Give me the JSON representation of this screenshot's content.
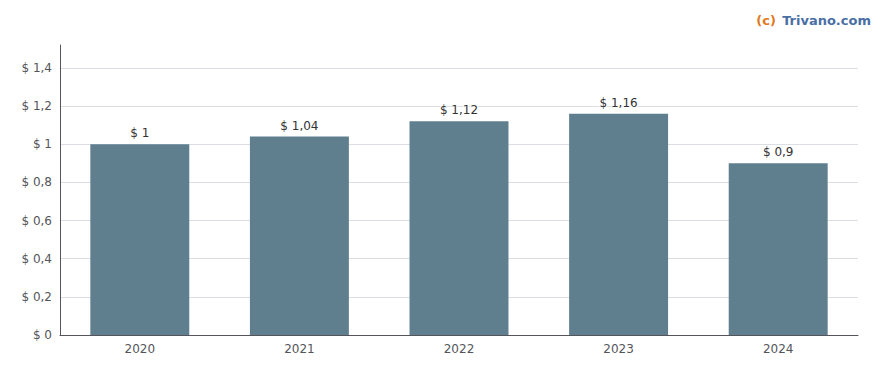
{
  "chart_data": {
    "type": "bar",
    "categories": [
      "2020",
      "2021",
      "2022",
      "2023",
      "2024"
    ],
    "values": [
      1.0,
      1.04,
      1.12,
      1.16,
      0.9
    ],
    "value_labels": [
      "$ 1",
      "$ 1,04",
      "$ 1,12",
      "$ 1,16",
      "$ 0,9"
    ],
    "data_labels": true,
    "color": "#5f7f8f",
    "ylim": [
      0,
      1.52
    ],
    "yticks": [
      {
        "value": 0,
        "label": "$ 0"
      },
      {
        "value": 0.2,
        "label": "$ 0,2"
      },
      {
        "value": 0.4,
        "label": "$ 0,4"
      },
      {
        "value": 0.6,
        "label": "$ 0,6"
      },
      {
        "value": 0.8,
        "label": "$ 0,8"
      },
      {
        "value": 1.0,
        "label": "$ 1"
      },
      {
        "value": 1.2,
        "label": "$ 1,2"
      },
      {
        "value": 1.4,
        "label": "$ 1,4"
      }
    ],
    "grid": true,
    "annotations": [
      {
        "text": "(c)",
        "color": "#e07820"
      },
      {
        "text": "Trivano.com",
        "color": "#4a6fa5"
      }
    ]
  }
}
